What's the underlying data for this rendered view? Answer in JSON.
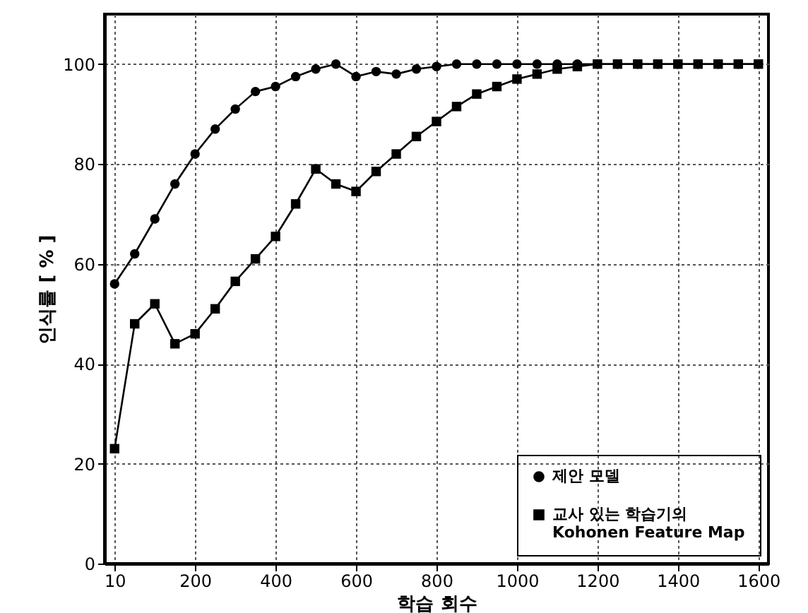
{
  "chart_data": {
    "type": "line",
    "xlabel": "학습 회수",
    "ylabel": "인식률 [ % ]",
    "categories": [
      "10",
      null,
      null,
      null,
      "200",
      null,
      null,
      null,
      "400",
      null,
      null,
      null,
      "600",
      null,
      null,
      null,
      "800",
      null,
      null,
      null,
      "1000",
      null,
      null,
      null,
      "1200",
      null,
      null,
      null,
      "1400",
      null,
      null,
      null,
      "1600"
    ],
    "series": [
      {
        "name": "제안 모델",
        "color": "#000000",
        "marker": "circle",
        "values": [
          56,
          62,
          69,
          76,
          82,
          87,
          91,
          94.5,
          95.5,
          97.5,
          99,
          100,
          97.5,
          98.5,
          98,
          99,
          99.5,
          100,
          100,
          100,
          100,
          100,
          100,
          100,
          100,
          100,
          100,
          100,
          100,
          100,
          100,
          100,
          100
        ]
      },
      {
        "name": "교사 있는 학습기의\nKohonen Feature Map",
        "color": "#000000",
        "marker": "square",
        "values": [
          23,
          48,
          52,
          44,
          46,
          51,
          56.5,
          61,
          65.5,
          72,
          79,
          76,
          74.5,
          78.5,
          82,
          85.5,
          88.5,
          91.5,
          94,
          95.5,
          97,
          98,
          99,
          99.5,
          100,
          100,
          100,
          100,
          100,
          100,
          100,
          100,
          100
        ]
      }
    ],
    "ylim": [
      0,
      110
    ],
    "yticks": [
      0,
      20,
      40,
      60,
      80,
      100
    ],
    "grid": true,
    "legend": "bottom right",
    "line_style": "solid"
  }
}
